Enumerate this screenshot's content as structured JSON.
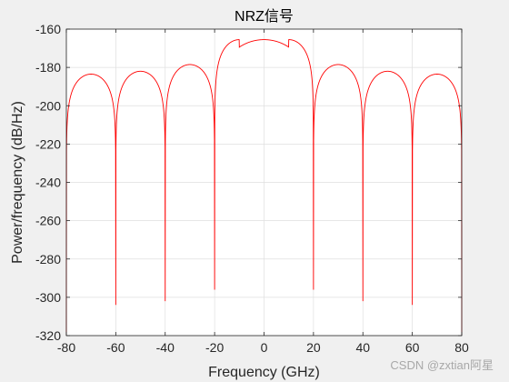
{
  "chart_data": {
    "type": "line",
    "title": "NRZ信号",
    "xlabel": "Frequency (GHz)",
    "ylabel": "Power/frequency (dB/Hz)",
    "xlim": [
      -80,
      80
    ],
    "ylim": [
      -320,
      -160
    ],
    "x_ticks": [
      -80,
      -60,
      -40,
      -20,
      0,
      20,
      40,
      60,
      80
    ],
    "y_ticks": [
      -160,
      -180,
      -200,
      -220,
      -240,
      -260,
      -280,
      -300,
      -320
    ],
    "x_tick_labels": [
      "-80",
      "-60",
      "-40",
      "-20",
      "0",
      "20",
      "40",
      "60",
      "80"
    ],
    "y_tick_labels": [
      "-160",
      "-180",
      "-200",
      "-220",
      "-240",
      "-260",
      "-280",
      "-300",
      "-320"
    ],
    "grid": true,
    "series": [
      {
        "color": "#ff0000",
        "peak_level_db": -165.5,
        "null_spacing_ghz": 20,
        "nulls": [
          {
            "x": -60,
            "y": -304
          },
          {
            "x": -40,
            "y": -302
          },
          {
            "x": -20,
            "y": -296
          },
          {
            "x": 20,
            "y": -296
          },
          {
            "x": 40,
            "y": -302
          },
          {
            "x": 60,
            "y": -304
          }
        ],
        "lobe_peaks": [
          {
            "x": -70,
            "y": -183.5
          },
          {
            "x": -50,
            "y": -182
          },
          {
            "x": -30,
            "y": -178.5
          },
          {
            "x": 0,
            "y": -165.5
          },
          {
            "x": 30,
            "y": -178.5
          },
          {
            "x": 50,
            "y": -182
          },
          {
            "x": 70,
            "y": -183.5
          }
        ]
      }
    ]
  },
  "watermark": "CSDN @zxtian阿星"
}
